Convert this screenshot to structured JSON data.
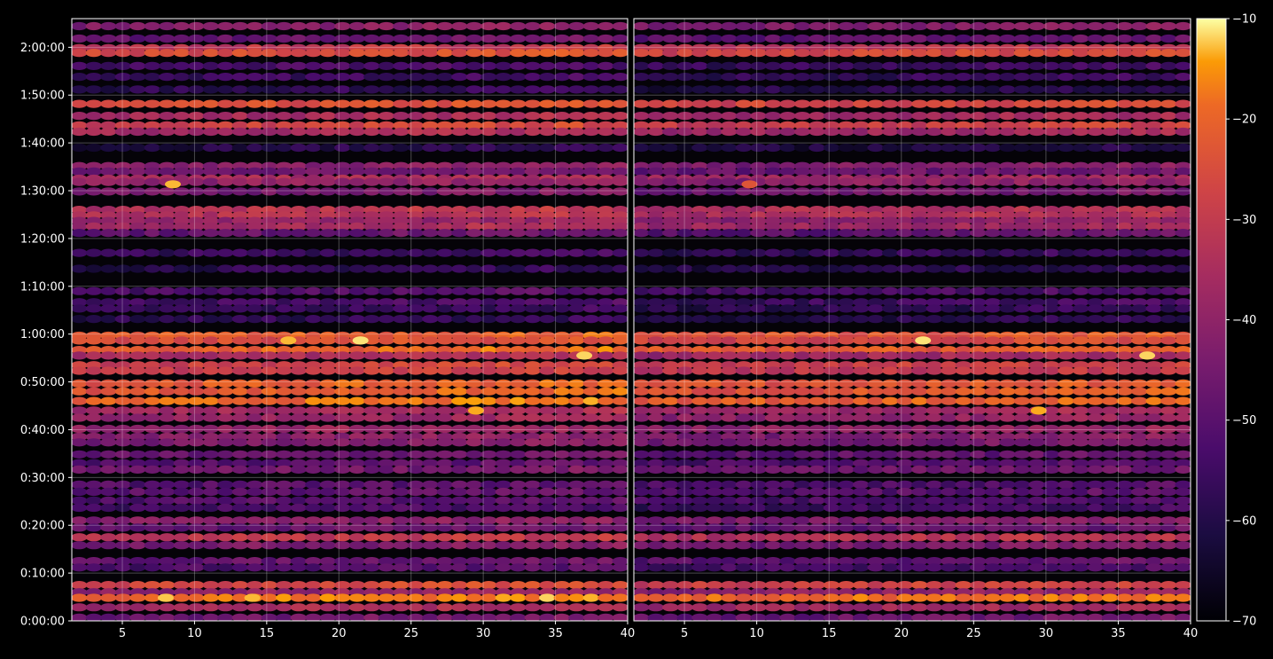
{
  "chart_data": {
    "type": "heatmap",
    "title": "",
    "panels": [
      {
        "name": "",
        "xlim": [
          1.5,
          40
        ],
        "xticks": [
          5,
          10,
          15,
          20,
          25,
          30,
          35,
          40
        ]
      },
      {
        "name": "",
        "xlim": [
          1.5,
          40
        ],
        "xticks": [
          5,
          10,
          15,
          20,
          25,
          30,
          35,
          40
        ]
      }
    ],
    "ylim_seconds": [
      0,
      7560
    ],
    "ytick_labels": [
      "0:00:00",
      "0:10:00",
      "0:20:00",
      "0:30:00",
      "0:40:00",
      "0:50:00",
      "1:00:00",
      "1:10:00",
      "1:20:00",
      "1:30:00",
      "1:40:00",
      "1:50:00",
      "2:00:00"
    ],
    "colorbar": {
      "min": -70,
      "max": -10,
      "ticks": [
        -10,
        -20,
        -30,
        -40,
        -50,
        -60,
        -70
      ],
      "tick_labels": [
        "−10",
        "−20",
        "−30",
        "−40",
        "−50",
        "−60",
        "−70"
      ],
      "colormap": "inferno"
    },
    "grid": true,
    "bands": [
      {
        "t": 7465,
        "level": 0.45
      },
      {
        "t": 7310,
        "level": 0.35
      },
      {
        "t": 7190,
        "level": 0.62
      },
      {
        "t": 7130,
        "level": 0.72
      },
      {
        "t": 6965,
        "level": 0.25
      },
      {
        "t": 6830,
        "level": 0.22
      },
      {
        "t": 6670,
        "level": 0.18
      },
      {
        "t": 6490,
        "level": 0.72
      },
      {
        "t": 6340,
        "level": 0.55
      },
      {
        "t": 6220,
        "level": 0.68
      },
      {
        "t": 6140,
        "level": 0.55
      },
      {
        "t": 5940,
        "level": 0.15
      },
      {
        "t": 5710,
        "level": 0.45
      },
      {
        "t": 5640,
        "level": 0.38
      },
      {
        "t": 5550,
        "level": 0.55
      },
      {
        "t": 5510,
        "level": 0.48
      },
      {
        "t": 5390,
        "level": 0.4
      },
      {
        "t": 5160,
        "level": 0.6
      },
      {
        "t": 5090,
        "level": 0.6
      },
      {
        "t": 5020,
        "level": 0.48
      },
      {
        "t": 4950,
        "level": 0.55
      },
      {
        "t": 4870,
        "level": 0.35
      },
      {
        "t": 4620,
        "level": 0.22
      },
      {
        "t": 4420,
        "level": 0.18
      },
      {
        "t": 4140,
        "level": 0.28
      },
      {
        "t": 4000,
        "level": 0.25
      },
      {
        "t": 3920,
        "level": 0.2
      },
      {
        "t": 3790,
        "level": 0.18
      },
      {
        "t": 3580,
        "level": 0.78
      },
      {
        "t": 3520,
        "level": 0.72
      },
      {
        "t": 3400,
        "level": 0.8
      },
      {
        "t": 3330,
        "level": 0.55
      },
      {
        "t": 3210,
        "level": 0.68
      },
      {
        "t": 3140,
        "level": 0.65
      },
      {
        "t": 2980,
        "level": 0.78
      },
      {
        "t": 2880,
        "level": 0.78
      },
      {
        "t": 2760,
        "level": 0.82
      },
      {
        "t": 2640,
        "level": 0.55
      },
      {
        "t": 2550,
        "level": 0.5
      },
      {
        "t": 2410,
        "level": 0.5
      },
      {
        "t": 2310,
        "level": 0.45
      },
      {
        "t": 2240,
        "level": 0.42
      },
      {
        "t": 2090,
        "level": 0.35
      },
      {
        "t": 1980,
        "level": 0.3
      },
      {
        "t": 1900,
        "level": 0.38
      },
      {
        "t": 1710,
        "level": 0.3
      },
      {
        "t": 1620,
        "level": 0.32
      },
      {
        "t": 1510,
        "level": 0.3
      },
      {
        "t": 1420,
        "level": 0.25
      },
      {
        "t": 1260,
        "level": 0.45
      },
      {
        "t": 1170,
        "level": 0.35
      },
      {
        "t": 1050,
        "level": 0.62
      },
      {
        "t": 950,
        "level": 0.42
      },
      {
        "t": 750,
        "level": 0.35
      },
      {
        "t": 670,
        "level": 0.28
      },
      {
        "t": 450,
        "level": 0.7
      },
      {
        "t": 360,
        "level": 0.48
      },
      {
        "t": 290,
        "level": 0.85
      },
      {
        "t": 170,
        "level": 0.55
      },
      {
        "t": 40,
        "level": 0.38
      }
    ],
    "hotspots": [
      {
        "panel": 0,
        "x": 8.5,
        "t": 5480,
        "level": 0.95
      },
      {
        "panel": 1,
        "x": 9.5,
        "t": 5480,
        "level": 0.78
      },
      {
        "panel": 0,
        "x": 16.5,
        "t": 3520,
        "level": 0.95
      },
      {
        "panel": 0,
        "x": 21.5,
        "t": 3520,
        "level": 0.98
      },
      {
        "panel": 1,
        "x": 21.5,
        "t": 3520,
        "level": 0.98
      },
      {
        "panel": 0,
        "x": 37,
        "t": 3330,
        "level": 0.97
      },
      {
        "panel": 1,
        "x": 37,
        "t": 3330,
        "level": 0.97
      },
      {
        "panel": 0,
        "x": 29.5,
        "t": 2640,
        "level": 0.94
      },
      {
        "panel": 1,
        "x": 29.5,
        "t": 2640,
        "level": 0.94
      },
      {
        "panel": 0,
        "x": 8,
        "t": 290,
        "level": 0.96
      },
      {
        "panel": 0,
        "x": 14,
        "t": 290,
        "level": 0.95
      }
    ]
  }
}
